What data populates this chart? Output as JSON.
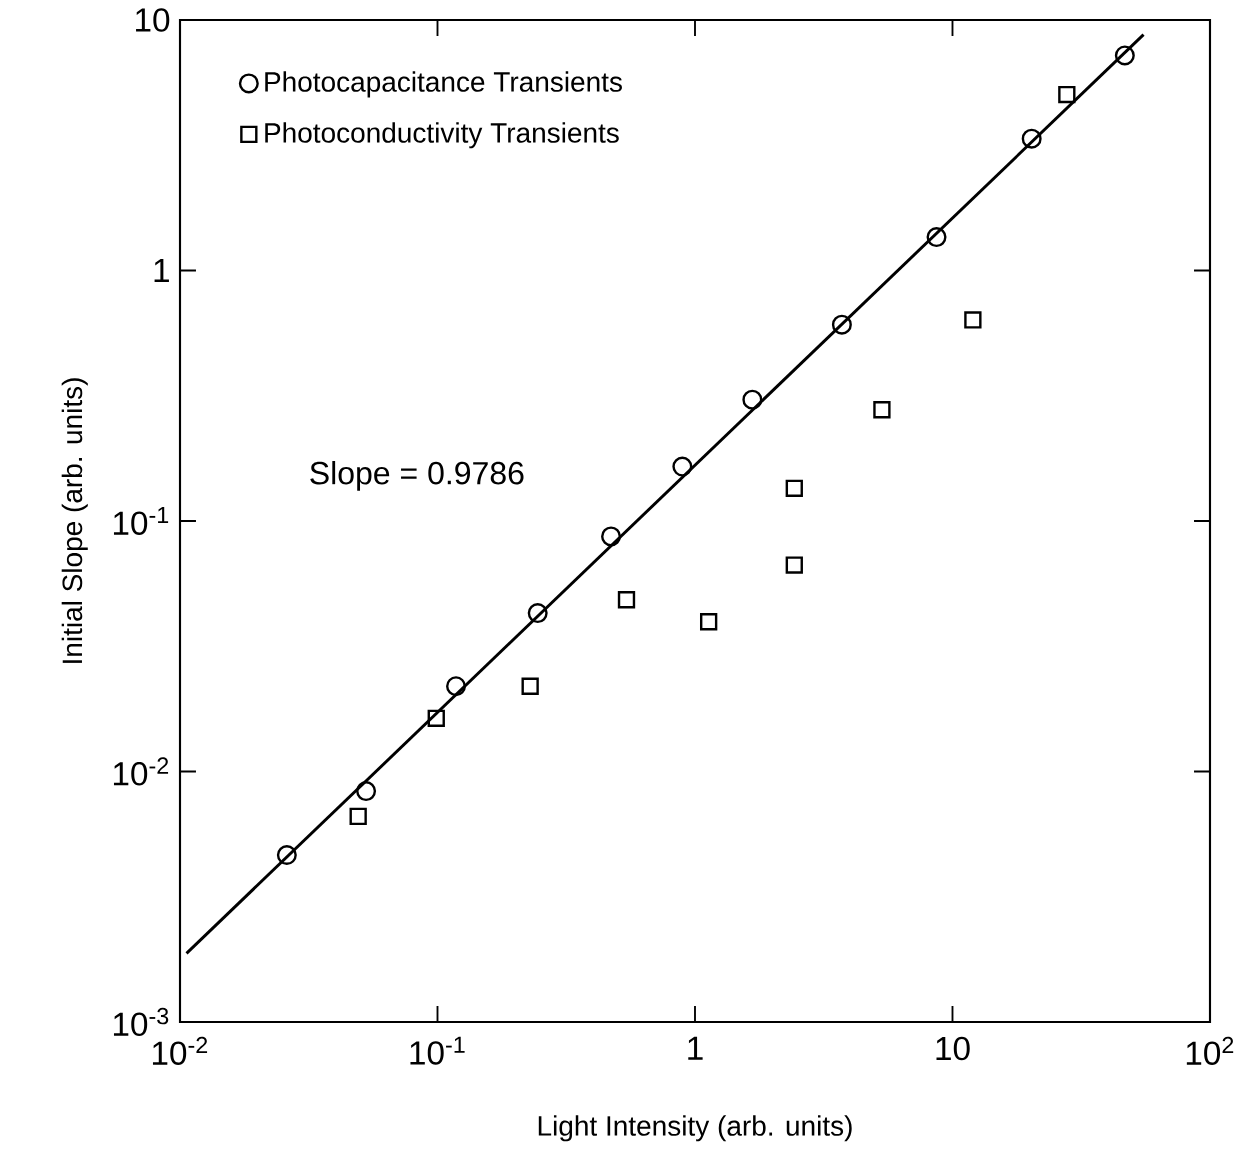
{
  "chart_data": {
    "type": "scatter",
    "xlabel": "Light Intensity (arb. units)",
    "ylabel": "Initial Slope (arb. units)",
    "log": "xy",
    "legend": "top left",
    "xlim": [
      0.01,
      100
    ],
    "ylim": [
      0.001,
      10
    ],
    "xticks": [
      {
        "value": 0.01,
        "label": "10$^{-2}$"
      },
      {
        "value": 0.1,
        "label": "10$^{-1}$"
      },
      1,
      10,
      {
        "value": 100,
        "label": "10$^{2}$"
      }
    ],
    "yticks": [
      {
        "value": 0.001,
        "label": "10$^{-3}$"
      },
      {
        "value": 0.01,
        "label": "10$^{-2}$"
      },
      {
        "value": 0.1,
        "label": "10$^{-1}$"
      },
      1,
      10
    ],
    "annotations": [
      "Slope = 0.9786"
    ],
    "series": [
      {
        "name": "Photocapacitance Transients",
        "marker": "circle",
        "color": "#000000",
        "x": [
          0.026,
          0.0528,
          0.118,
          0.245,
          0.472,
          0.893,
          1.67,
          3.72,
          8.67,
          20.3,
          46.7
        ],
        "values": [
          0.00464,
          0.00835,
          0.0219,
          0.0429,
          0.0868,
          0.165,
          0.305,
          0.608,
          1.36,
          3.36,
          7.22
        ]
      },
      {
        "name": "Photoconductivity Transients",
        "marker": "square",
        "color": "#000000",
        "x": [
          0.0492,
          0.0989,
          0.229,
          0.542,
          1.13,
          2.43,
          2.43,
          5.32,
          12.0,
          27.8
        ],
        "values": [
          0.00662,
          0.0163,
          0.0219,
          0.0485,
          0.0396,
          0.0667,
          0.135,
          0.278,
          0.635,
          5.04
        ]
      },
      {
        "type": "line",
        "marker": "none",
        "color": "#000000",
        "x": [
          0.0106,
          55.2
        ],
        "values": [
          0.00188,
          8.74
        ]
      }
    ]
  }
}
